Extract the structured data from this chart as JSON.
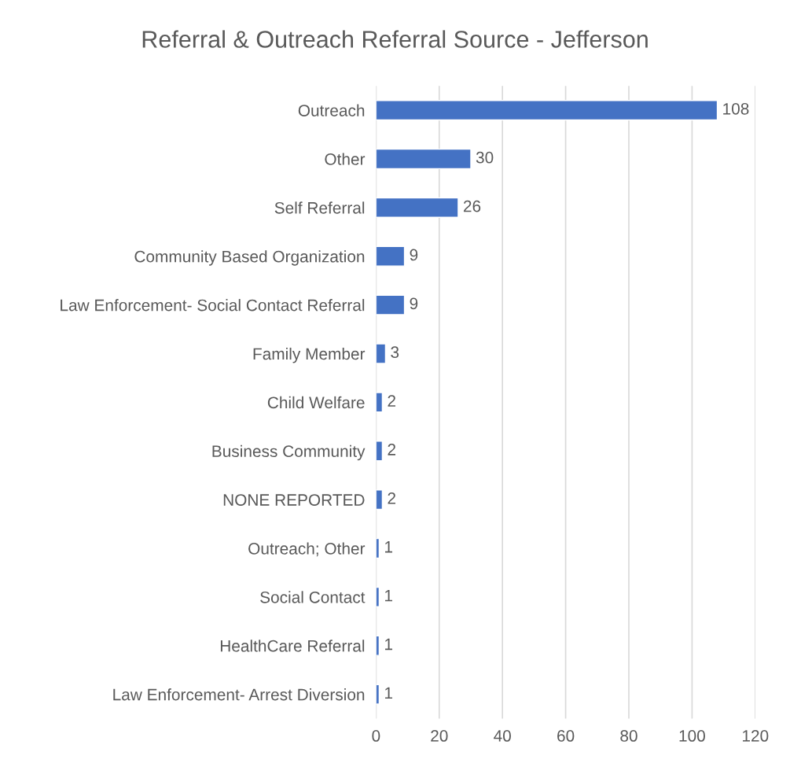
{
  "chart_data": {
    "type": "bar",
    "orientation": "horizontal",
    "title": "Referral & Outreach Referral Source - Jefferson",
    "categories": [
      "Outreach",
      "Other",
      "Self Referral",
      "Community Based Organization",
      "Law Enforcement- Social Contact Referral",
      "Family Member",
      "Child Welfare",
      "Business Community",
      "NONE REPORTED",
      "Outreach; Other",
      "Social Contact",
      "HealthCare Referral",
      "Law Enforcement- Arrest Diversion"
    ],
    "values": [
      108,
      30,
      26,
      9,
      9,
      3,
      2,
      2,
      2,
      1,
      1,
      1,
      1
    ],
    "color": "#4472c4",
    "xlim": [
      0,
      120
    ],
    "xticks": [
      0,
      20,
      40,
      60,
      80,
      100,
      120
    ],
    "grid": "x",
    "data_labels": true,
    "legend": false
  }
}
